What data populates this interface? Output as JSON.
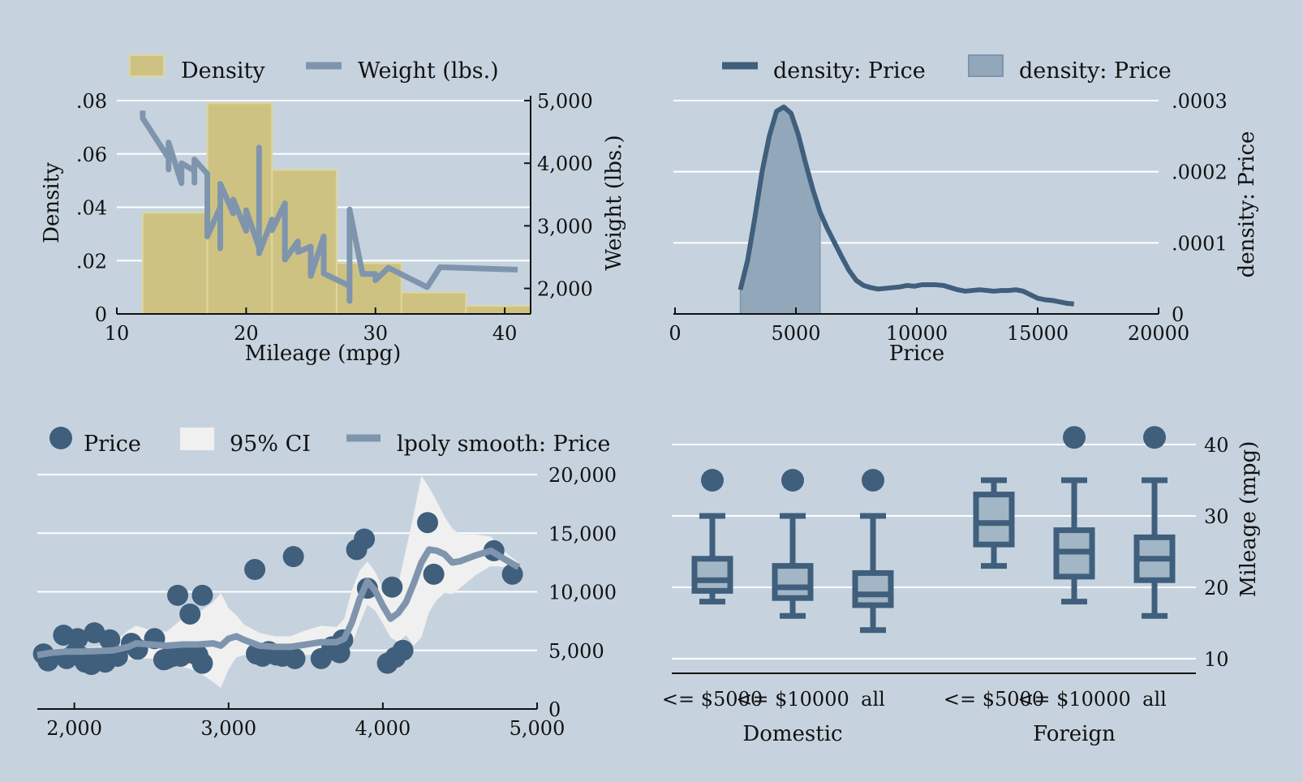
{
  "colors": {
    "background": "#c6d3df",
    "grid": "#ffffff",
    "bar_fill": "#cdc282",
    "bar_stroke": "#e0d59a",
    "weight_line": "#7f95ad",
    "density_line": "#3f5f7c",
    "density_area": "#93a7ba",
    "scatter": "#3f5f7c",
    "ci_band": "#f0f0f0",
    "smooth_line": "#7f95ad",
    "box_stroke": "#3f5f7c",
    "box_fill": "#a3b6c6"
  },
  "chart_data": [
    {
      "type": "bar",
      "id": "hist-mileage",
      "xlabel": "Mileage (mpg)",
      "ylabel": "Density",
      "y2label": "Weight (lbs.)",
      "legend": [
        "Density",
        "Weight (lbs.)"
      ],
      "legend_position": "top",
      "xlim": [
        10,
        42
      ],
      "ylim": [
        0,
        0.08
      ],
      "y2lim": [
        1800,
        5000
      ],
      "xticks": [
        10,
        20,
        30,
        40
      ],
      "xtick_labels": [
        "10",
        "20",
        "30",
        "40"
      ],
      "yticks": [
        0,
        0.02,
        0.04,
        0.06,
        0.08
      ],
      "ytick_labels": [
        "0",
        ".02",
        ".04",
        ".06",
        ".08"
      ],
      "y2ticks": [
        2000,
        3000,
        4000,
        5000
      ],
      "y2tick_labels": [
        "2,000",
        "3,000",
        "4,000",
        "5,000"
      ],
      "bins": [
        {
          "from": 12,
          "to": 17,
          "density": 0.038
        },
        {
          "from": 17,
          "to": 22,
          "density": 0.079
        },
        {
          "from": 22,
          "to": 27,
          "density": 0.054
        },
        {
          "from": 27,
          "to": 32,
          "density": 0.019
        },
        {
          "from": 32,
          "to": 37,
          "density": 0.008
        },
        {
          "from": 37,
          "to": 42,
          "density": 0.003
        }
      ],
      "weight_series": {
        "name": "Weight (lbs.)",
        "x": [
          12,
          12,
          14,
          14,
          14,
          15,
          15,
          16,
          16,
          16,
          17,
          17,
          18,
          18,
          18,
          19,
          19,
          20,
          20,
          21,
          21,
          21,
          22,
          22,
          23,
          23,
          24,
          24,
          25,
          25,
          26,
          26,
          28,
          28,
          28,
          29,
          30,
          30,
          31,
          34,
          35,
          41
        ],
        "y": [
          4840,
          4720,
          4080,
          3900,
          4330,
          3680,
          4000,
          3880,
          3690,
          4060,
          3830,
          2830,
          3300,
          2640,
          3670,
          3200,
          3420,
          2920,
          3250,
          2650,
          4250,
          2560,
          3100,
          2930,
          3360,
          2460,
          2750,
          2580,
          2670,
          2200,
          2830,
          2240,
          2040,
          1800,
          3260,
          2230,
          2230,
          2130,
          2330,
          2020,
          2340,
          2300
        ]
      }
    },
    {
      "type": "area",
      "id": "kdensity-price",
      "xlabel": "Price",
      "ylabel": "density: Price",
      "legend": [
        "density: Price",
        "density: Price"
      ],
      "legend_position": "top",
      "xlim": [
        0,
        20000
      ],
      "ylim": [
        0,
        0.0003
      ],
      "xticks": [
        0,
        5000,
        10000,
        15000,
        20000
      ],
      "xtick_labels": [
        "0",
        "5000",
        "10000",
        "15000",
        "20000"
      ],
      "yticks": [
        0,
        0.0001,
        0.0002,
        0.0003
      ],
      "ytick_labels": [
        "0",
        ".0001",
        ".0002",
        ".0003"
      ],
      "x": [
        2700,
        3000,
        3300,
        3600,
        3900,
        4200,
        4500,
        4800,
        5100,
        5400,
        5700,
        6000,
        6300,
        6600,
        6900,
        7200,
        7500,
        7800,
        8100,
        8400,
        8700,
        9000,
        9300,
        9600,
        9900,
        10200,
        10500,
        10800,
        11100,
        11400,
        11700,
        12000,
        12300,
        12600,
        12900,
        13200,
        13500,
        13800,
        14100,
        14400,
        14700,
        15000,
        15300,
        15600,
        15900,
        16200,
        16500
      ],
      "values": [
        3.4e-05,
        7.5e-05,
        0.000135,
        0.0002,
        0.00025,
        0.000285,
        0.000291,
        0.000282,
        0.000252,
        0.000212,
        0.000175,
        0.000143,
        0.00012,
        0.0001,
        8e-05,
        6.1e-05,
        4.7e-05,
        4e-05,
        3.7e-05,
        3.5e-05,
        3.6e-05,
        3.7e-05,
        3.8e-05,
        4e-05,
        3.9e-05,
        4.1e-05,
        4.1e-05,
        4.1e-05,
        4e-05,
        3.7e-05,
        3.4e-05,
        3.2e-05,
        3.3e-05,
        3.4e-05,
        3.3e-05,
        3.2e-05,
        3.3e-05,
        3.3e-05,
        3.4e-05,
        3.2e-05,
        2.7e-05,
        2.2e-05,
        2e-05,
        1.9e-05,
        1.7e-05,
        1.5e-05,
        1.4e-05
      ],
      "shaded_range": [
        2700,
        6000
      ]
    },
    {
      "type": "scatter",
      "id": "lpoly-price",
      "legend": [
        "Price",
        "95% CI",
        "lpoly smooth: Price"
      ],
      "legend_position": "top",
      "xlim": [
        1760,
        5000
      ],
      "ylim": [
        0,
        20000
      ],
      "xticks": [
        2000,
        3000,
        4000,
        5000
      ],
      "xtick_labels": [
        "2,000",
        "3,000",
        "4,000",
        "5,000"
      ],
      "yticks": [
        0,
        5000,
        10000,
        15000,
        20000
      ],
      "ytick_labels": [
        "0",
        "5,000",
        "10,000",
        "15,000",
        "20,000"
      ],
      "points_x": [
        1800,
        1830,
        1930,
        1950,
        2000,
        2020,
        2050,
        2070,
        2110,
        2130,
        2160,
        2200,
        2230,
        2280,
        2370,
        2410,
        2520,
        2580,
        2600,
        2640,
        2650,
        2670,
        2690,
        2730,
        2750,
        2780,
        2800,
        2830,
        2830,
        3170,
        3180,
        3220,
        3260,
        3310,
        3350,
        3420,
        3430,
        3600,
        3670,
        3690,
        3720,
        3740,
        3830,
        3880,
        3900,
        4030,
        4060,
        4080,
        4130,
        4290,
        4330,
        4720,
        4840
      ],
      "points_y": [
        4700,
        4100,
        6300,
        4300,
        4700,
        6000,
        4400,
        4000,
        3800,
        6500,
        4200,
        4000,
        5900,
        4500,
        5600,
        5100,
        6000,
        4200,
        4300,
        4500,
        4600,
        9700,
        4500,
        4800,
        8100,
        4700,
        4600,
        3900,
        9700,
        11900,
        4700,
        4500,
        4900,
        4600,
        4500,
        13000,
        4300,
        4300,
        5300,
        5000,
        4800,
        5900,
        13600,
        14500,
        10300,
        3900,
        10400,
        4400,
        5000,
        15900,
        11500,
        13500,
        11500
      ],
      "smooth_x": [
        1760,
        1850,
        1950,
        2050,
        2150,
        2250,
        2350,
        2400,
        2500,
        2600,
        2700,
        2800,
        2900,
        2950,
        3000,
        3050,
        3100,
        3200,
        3300,
        3400,
        3500,
        3600,
        3700,
        3750,
        3800,
        3850,
        3900,
        3950,
        4000,
        4050,
        4100,
        4150,
        4200,
        4250,
        4300,
        4350,
        4400,
        4450,
        4500,
        4600,
        4700,
        4800,
        4880
      ],
      "smooth_y": [
        4600,
        4800,
        4900,
        4900,
        4950,
        5000,
        5300,
        5600,
        5500,
        5400,
        5500,
        5500,
        5600,
        5400,
        6000,
        6200,
        5900,
        5400,
        5300,
        5300,
        5500,
        5700,
        5700,
        6000,
        7400,
        9400,
        10900,
        10100,
        8800,
        7700,
        8200,
        9100,
        10700,
        12500,
        13600,
        13500,
        13200,
        12500,
        12600,
        13100,
        13500,
        12700,
        12100
      ],
      "ci_upper": [
        4900,
        5100,
        5200,
        5200,
        5300,
        5600,
        6700,
        7100,
        6700,
        6600,
        7700,
        8200,
        9100,
        9900,
        8600,
        8000,
        7200,
        6500,
        6200,
        6200,
        6700,
        7100,
        7000,
        7700,
        10200,
        11800,
        12600,
        11700,
        10300,
        9900,
        10700,
        13600,
        16600,
        19900,
        18900,
        17700,
        16400,
        15400,
        14900,
        14900,
        14700,
        13300,
        12500
      ],
      "ci_lower": [
        4300,
        4400,
        4500,
        4500,
        4600,
        4500,
        4200,
        4300,
        4300,
        4200,
        3600,
        3200,
        2300,
        1800,
        3400,
        4400,
        4600,
        4300,
        4400,
        4400,
        4600,
        4700,
        4800,
        4900,
        5500,
        7300,
        8900,
        8400,
        7300,
        6100,
        5700,
        6300,
        5400,
        6100,
        8300,
        9300,
        9900,
        9800,
        10300,
        11400,
        12200,
        12100,
        11700
      ]
    },
    {
      "type": "box",
      "id": "box-mileage",
      "ylabel": "Mileage (mpg)",
      "ylim": [
        8,
        42
      ],
      "yticks": [
        10,
        20,
        30,
        40
      ],
      "ytick_labels": [
        "10",
        "20",
        "30",
        "40"
      ],
      "groups": [
        "Domestic",
        "Foreign"
      ],
      "categories": [
        "<= $5000",
        "<= $10000",
        "all",
        "<= $5000",
        "<= $10000",
        "all"
      ],
      "boxes": [
        {
          "group": "Domestic",
          "label": "<= $5000",
          "min": 18,
          "q1": 19.5,
          "median": 21,
          "q3": 24,
          "max": 30,
          "outliers": [
            35
          ]
        },
        {
          "group": "Domestic",
          "label": "<= $10000",
          "min": 16,
          "q1": 18.5,
          "median": 20,
          "q3": 23,
          "max": 30,
          "outliers": [
            35
          ]
        },
        {
          "group": "Domestic",
          "label": "all",
          "min": 14,
          "q1": 17.5,
          "median": 19,
          "q3": 22,
          "max": 30,
          "outliers": [
            35
          ]
        },
        {
          "group": "Foreign",
          "label": "<= $5000",
          "min": 23,
          "q1": 26,
          "median": 29,
          "q3": 33,
          "max": 35,
          "outliers": []
        },
        {
          "group": "Foreign",
          "label": "<= $10000",
          "min": 18,
          "q1": 21.5,
          "median": 25,
          "q3": 28,
          "max": 35,
          "outliers": [
            41
          ]
        },
        {
          "group": "Foreign",
          "label": "all",
          "min": 16,
          "q1": 21,
          "median": 24,
          "q3": 27,
          "max": 35,
          "outliers": [
            41
          ]
        }
      ]
    }
  ]
}
